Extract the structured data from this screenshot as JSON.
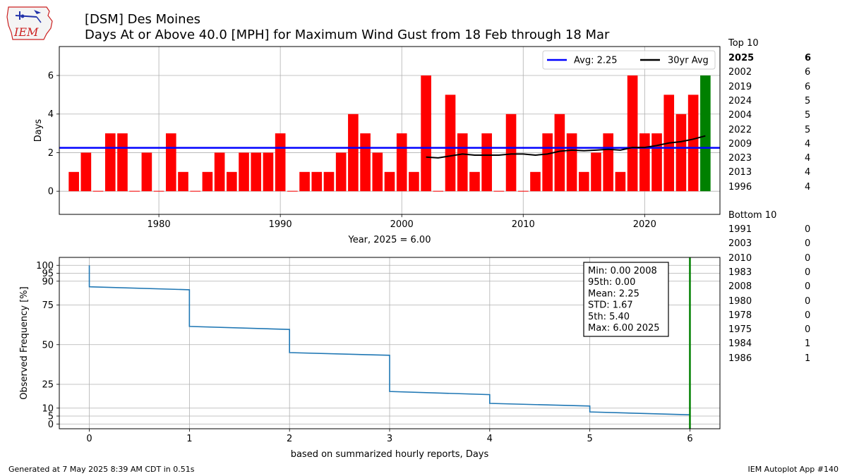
{
  "logo": {
    "text": "IEM"
  },
  "header": {
    "title_line1": "[DSM] Des Moines",
    "title_line2": "Days At or Above 40.0 [MPH] for Maximum Wind Gust from 18 Feb through 18 Mar"
  },
  "chart_data": [
    {
      "type": "bar",
      "x": [
        1973,
        1974,
        1975,
        1976,
        1977,
        1978,
        1979,
        1980,
        1981,
        1982,
        1983,
        1984,
        1985,
        1986,
        1987,
        1988,
        1989,
        1990,
        1991,
        1992,
        1993,
        1994,
        1995,
        1996,
        1997,
        1998,
        1999,
        2000,
        2001,
        2002,
        2003,
        2004,
        2005,
        2006,
        2007,
        2008,
        2009,
        2010,
        2011,
        2012,
        2013,
        2014,
        2015,
        2016,
        2017,
        2018,
        2019,
        2020,
        2021,
        2022,
        2023,
        2024,
        2025
      ],
      "values": [
        1,
        2,
        0,
        3,
        3,
        0,
        2,
        0,
        3,
        1,
        0,
        1,
        2,
        1,
        2,
        2,
        2,
        3,
        0,
        1,
        1,
        1,
        2,
        4,
        3,
        2,
        1,
        3,
        1,
        6,
        0,
        5,
        3,
        1,
        3,
        0,
        4,
        0,
        1,
        3,
        4,
        3,
        1,
        2,
        3,
        1,
        6,
        3,
        3,
        5,
        4,
        5,
        6
      ],
      "bar_colors": {
        "default": "#ff0000",
        "current": "#008000"
      },
      "current_year": 2025,
      "avg": {
        "label": "Avg: 2.25",
        "value": 2.25,
        "color": "#0000ff"
      },
      "rolling": {
        "label": "30yr Avg",
        "color": "#000000",
        "x": [
          2002,
          2003,
          2004,
          2005,
          2006,
          2007,
          2008,
          2009,
          2010,
          2011,
          2012,
          2013,
          2014,
          2015,
          2016,
          2017,
          2018,
          2019,
          2020,
          2021,
          2022,
          2023,
          2024,
          2025
        ],
        "values": [
          1.77,
          1.73,
          1.83,
          1.93,
          1.87,
          1.87,
          1.87,
          1.93,
          1.93,
          1.87,
          1.93,
          2.07,
          2.13,
          2.1,
          2.13,
          2.17,
          2.13,
          2.27,
          2.27,
          2.37,
          2.5,
          2.57,
          2.7,
          2.87
        ]
      },
      "ylabel": "Days",
      "xlabel": "Year, 2025 = 6.00",
      "xticks": [
        1980,
        1990,
        2000,
        2010,
        2020
      ],
      "yticks": [
        0,
        2,
        4,
        6
      ],
      "xlim": [
        1971.8,
        2026.2
      ],
      "ylim": [
        -1.2,
        7.5
      ],
      "grid": true,
      "legend_position": "top-right"
    },
    {
      "type": "line",
      "series_color": "#1f77b4",
      "steps": [
        {
          "x": 0,
          "y_start": 100,
          "y_end": 86.5
        },
        {
          "x": 1,
          "y_start": 84.6,
          "y_end": 61.5
        },
        {
          "x": 2,
          "y_start": 59.6,
          "y_end": 45.0
        },
        {
          "x": 3,
          "y_start": 43.3,
          "y_end": 20.5
        },
        {
          "x": 4,
          "y_start": 18.5,
          "y_end": 13.0
        },
        {
          "x": 5,
          "y_start": 11.3,
          "y_end": 7.6
        },
        {
          "x": 6,
          "y_start": 5.8,
          "y_end": 5.8
        }
      ],
      "marker_x": 6,
      "marker_color": "#008000",
      "ylabel": "Observed Frequency [%]",
      "xlabel": "based on summarized hourly reports, Days",
      "xticks": [
        0,
        1,
        2,
        3,
        4,
        5,
        6
      ],
      "yticks": [
        0,
        5,
        10,
        25,
        50,
        75,
        90,
        95,
        100
      ],
      "xlim": [
        -0.3,
        6.3
      ],
      "ylim": [
        -3,
        105
      ],
      "grid": true,
      "stats": [
        "Min: 0.00 2008",
        "95th: 0.00",
        "Mean: 2.25",
        "STD: 1.67",
        "5th: 5.40",
        "Max: 6.00 2025"
      ]
    }
  ],
  "top10": {
    "heading": "Top 10",
    "rows": [
      {
        "year": "2025",
        "value": "6",
        "bold": true
      },
      {
        "year": "2002",
        "value": "6"
      },
      {
        "year": "2019",
        "value": "6"
      },
      {
        "year": "2024",
        "value": "5"
      },
      {
        "year": "2004",
        "value": "5"
      },
      {
        "year": "2022",
        "value": "5"
      },
      {
        "year": "2009",
        "value": "4"
      },
      {
        "year": "2023",
        "value": "4"
      },
      {
        "year": "2013",
        "value": "4"
      },
      {
        "year": "1996",
        "value": "4"
      }
    ]
  },
  "bottom10": {
    "heading": "Bottom 10",
    "rows": [
      {
        "year": "1991",
        "value": "0"
      },
      {
        "year": "2003",
        "value": "0"
      },
      {
        "year": "2010",
        "value": "0"
      },
      {
        "year": "1983",
        "value": "0"
      },
      {
        "year": "2008",
        "value": "0"
      },
      {
        "year": "1980",
        "value": "0"
      },
      {
        "year": "1978",
        "value": "0"
      },
      {
        "year": "1975",
        "value": "0"
      },
      {
        "year": "1984",
        "value": "1"
      },
      {
        "year": "1986",
        "value": "1"
      }
    ]
  },
  "footer": {
    "generated": "Generated at 7 May 2025 8:39 AM CDT in 0.51s",
    "app": "IEM Autoplot App #140"
  }
}
